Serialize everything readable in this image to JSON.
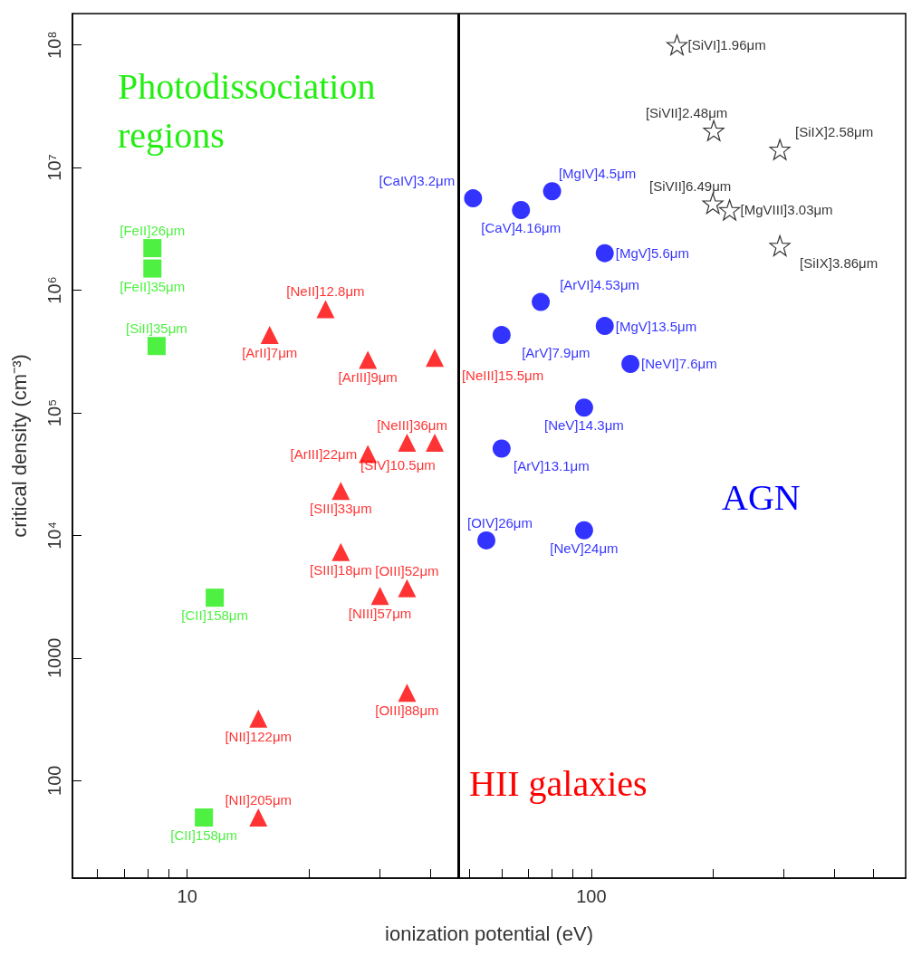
{
  "chart_data": {
    "type": "scatter",
    "xlabel": "ionization potential (eV)",
    "ylabel": "critical density (cm⁻³)",
    "log": "xy",
    "grid": false,
    "xlim": [
      5.2,
      600
    ],
    "ylim": [
      16,
      180000000
    ],
    "xticks": [
      {
        "value": 6,
        "label": null
      },
      {
        "value": 7,
        "label": null
      },
      {
        "value": 8,
        "label": null
      },
      {
        "value": 9,
        "label": null
      },
      10,
      {
        "value": 20,
        "label": null
      },
      {
        "value": 30,
        "label": null
      },
      {
        "value": 40,
        "label": null
      },
      {
        "value": 50,
        "label": null
      },
      {
        "value": 60,
        "label": null
      },
      {
        "value": 70,
        "label": null
      },
      {
        "value": 80,
        "label": null
      },
      {
        "value": 90,
        "label": null
      },
      100,
      {
        "value": 200,
        "label": null
      },
      {
        "value": 300,
        "label": null
      },
      {
        "value": 400,
        "label": null
      },
      {
        "value": 500,
        "label": null
      }
    ],
    "yticks": [
      100,
      1000,
      {
        "value": 10000,
        "label": "10⁴"
      },
      {
        "value": 100000,
        "label": "10⁵"
      },
      {
        "value": 1000000,
        "label": "10⁶"
      },
      {
        "value": 10000000,
        "label": "10⁷"
      },
      {
        "value": 100000000,
        "label": "10⁸"
      }
    ],
    "series": [
      {
        "color": "#22ee11",
        "marker": "square",
        "x": [
          8.2,
          8.2,
          8.4,
          11.7,
          11
        ],
        "values": [
          2200000,
          1500000,
          350000,
          3100,
          50
        ]
      },
      {
        "color": "#ff0000",
        "marker": "triangle",
        "x": [
          16,
          22,
          28,
          41,
          28,
          35,
          41,
          24,
          24,
          30,
          35,
          35,
          15,
          15
        ],
        "values": [
          430000,
          700000,
          270000,
          280000,
          46000,
          57000,
          57000,
          23000,
          7300,
          3200,
          3700,
          520,
          320,
          50
        ]
      },
      {
        "color": "#0000ff",
        "marker": "circle",
        "x": [
          51,
          67,
          80,
          108,
          75,
          60,
          108,
          125,
          96,
          60,
          55,
          96
        ],
        "values": [
          5600000,
          4500000,
          6400000,
          2000000,
          800000,
          430000,
          510000,
          250000,
          110000,
          51000,
          9100,
          11000
        ]
      },
      {
        "color": "#000000",
        "marker": "star",
        "x": [
          163,
          201,
          293,
          200,
          220,
          293
        ],
        "values": [
          100000000,
          20000000,
          14000000,
          5100000,
          4500000,
          2300000
        ]
      }
    ],
    "ref_lines": [
      {
        "axis": "x",
        "value": 47,
        "color": "#000000"
      }
    ],
    "annotations": [
      {
        "text": "[FeII]26μm",
        "x": 8.2,
        "y": 2200000
      },
      {
        "text": "[FeII]35μm",
        "x": 8.2,
        "y": 1500000
      },
      {
        "text": "[SiII]35μm",
        "x": 8.4,
        "y": 350000
      },
      {
        "text": "[CII]158μm",
        "x": 11.7,
        "y": 3100
      },
      {
        "text": "[CII]158μm",
        "x": 11,
        "y": 50
      },
      {
        "text": "[ArII]7μm",
        "x": 16,
        "y": 430000
      },
      {
        "text": "[NeII]12.8μm",
        "x": 22,
        "y": 700000
      },
      {
        "text": "[ArIII]9μm",
        "x": 28,
        "y": 270000
      },
      {
        "text": "[NeIII]15.5μm",
        "x": 41,
        "y": 280000
      },
      {
        "text": "[ArIII]22μm",
        "x": 28,
        "y": 46000
      },
      {
        "text": "[SIV]10.5μm",
        "x": 35,
        "y": 57000
      },
      {
        "text": "[NeIII]36μm",
        "x": 41,
        "y": 57000
      },
      {
        "text": "[SIII]33μm",
        "x": 24,
        "y": 23000
      },
      {
        "text": "[SIII]18μm",
        "x": 24,
        "y": 7300
      },
      {
        "text": "[NIII]57μm",
        "x": 30,
        "y": 3200
      },
      {
        "text": "[OIII]52μm",
        "x": 35,
        "y": 3700
      },
      {
        "text": "[OIII]88μm",
        "x": 35,
        "y": 520
      },
      {
        "text": "[NII]122μm",
        "x": 15,
        "y": 320
      },
      {
        "text": "[NII]205μm",
        "x": 15,
        "y": 50
      },
      {
        "text": "[CaIV]3.2μm",
        "x": 51,
        "y": 5600000
      },
      {
        "text": "[CaV]4.16μm",
        "x": 67,
        "y": 4500000
      },
      {
        "text": "[MgIV]4.5μm",
        "x": 80,
        "y": 6400000
      },
      {
        "text": "[MgV]5.6μm",
        "x": 108,
        "y": 2000000
      },
      {
        "text": "[ArVI]4.53μm",
        "x": 75,
        "y": 800000
      },
      {
        "text": "[ArV]7.9μm",
        "x": 60,
        "y": 430000
      },
      {
        "text": "[MgV]13.5μm",
        "x": 108,
        "y": 510000
      },
      {
        "text": "[NeVI]7.6μm",
        "x": 125,
        "y": 250000
      },
      {
        "text": "[NeV]14.3μm",
        "x": 96,
        "y": 110000
      },
      {
        "text": "[ArV]13.1μm",
        "x": 60,
        "y": 51000
      },
      {
        "text": "[OIV]26μm",
        "x": 55,
        "y": 9100
      },
      {
        "text": "[NeV]24μm",
        "x": 96,
        "y": 11000
      },
      {
        "text": "[SiVI]1.96μm",
        "x": 163,
        "y": 100000000
      },
      {
        "text": "[SiVII]2.48μm",
        "x": 201,
        "y": 20000000
      },
      {
        "text": "[SiIX]2.58μm",
        "x": 293,
        "y": 14000000
      },
      {
        "text": "[SiVII]6.49μm",
        "x": 200,
        "y": 5100000
      },
      {
        "text": "[MgVIII]3.03μm",
        "x": 220,
        "y": 4500000
      },
      {
        "text": "[SiIX]3.86μm",
        "x": 293,
        "y": 2300000
      },
      "Photodissociation regions",
      "HII galaxies",
      "AGN"
    ]
  }
}
